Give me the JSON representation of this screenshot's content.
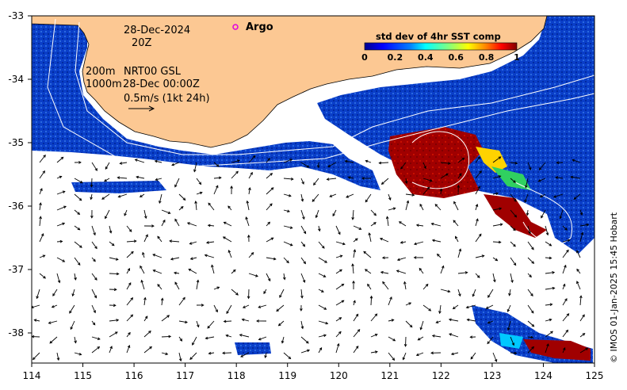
{
  "map": {
    "date_label": "28-Dec-2024",
    "time_label": "20Z",
    "argo_label": "Argo",
    "depth_200": "200m",
    "depth_1000": "1000m",
    "current_source": "NRT00 GSL",
    "current_time": "28-Dec 00:00Z",
    "scale_label": "0.5m/s (1kt 24h)",
    "credit": "© IMOS 01-Jan-2025 15:45 Hobart"
  },
  "colorbar": {
    "title": "std dev of 4hr SST comp",
    "ticks": [
      "0",
      "0.2",
      "0.4",
      "0.6",
      "0.8",
      "1"
    ],
    "colors": [
      "#00008f",
      "#0000ff",
      "#0080ff",
      "#00ffff",
      "#80ff80",
      "#ffff00",
      "#ff8000",
      "#ff0000",
      "#800000"
    ]
  },
  "axes": {
    "lon_ticks": [
      "114",
      "115",
      "116",
      "117",
      "118",
      "119",
      "120",
      "121",
      "122",
      "123",
      "124",
      "125"
    ],
    "lat_ticks": [
      "-33",
      "-34",
      "-35",
      "-36",
      "-37",
      "-38"
    ]
  },
  "colors": {
    "land": "#fcc893",
    "sst_low": "#0a3ec8",
    "sst_high": "#a00000"
  }
}
